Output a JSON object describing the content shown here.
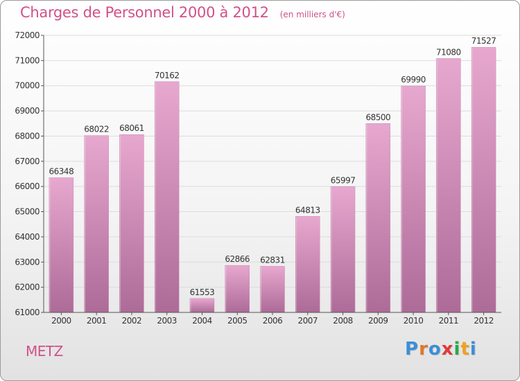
{
  "header": {
    "title": "Charges de Personnel 2000 à 2012",
    "subtitle": "(en milliers d'€)"
  },
  "footer": {
    "city": "METZ",
    "logo": {
      "text": "Proxiti",
      "letter_colors": [
        "#3a8fd8",
        "#e0782a",
        "#3a8fd8",
        "#e03a3a",
        "#2aa84a",
        "#f0a020",
        "#3a8fd8"
      ]
    }
  },
  "colors": {
    "accent": "#d2508a",
    "bar_top": "#e7a8cf",
    "bar_bottom": "#ad6b98",
    "grid": "#dcdcdc",
    "axis": "#555555",
    "text": "#333333"
  },
  "chart_data": {
    "type": "bar",
    "title": "Charges de Personnel 2000 à 2012",
    "subtitle": "(en milliers d'€)",
    "categories": [
      "2000",
      "2001",
      "2002",
      "2003",
      "2004",
      "2005",
      "2006",
      "2007",
      "2008",
      "2009",
      "2010",
      "2011",
      "2012"
    ],
    "values": [
      66348,
      68022,
      68061,
      70162,
      61553,
      62866,
      62831,
      64813,
      65997,
      68500,
      69990,
      71080,
      71527
    ],
    "ylim": [
      61000,
      72000
    ],
    "yticks": [
      61000,
      62000,
      63000,
      64000,
      65000,
      66000,
      67000,
      68000,
      69000,
      70000,
      71000,
      72000
    ],
    "grid": true,
    "data_labels": true,
    "xlabel": "",
    "ylabel": ""
  }
}
